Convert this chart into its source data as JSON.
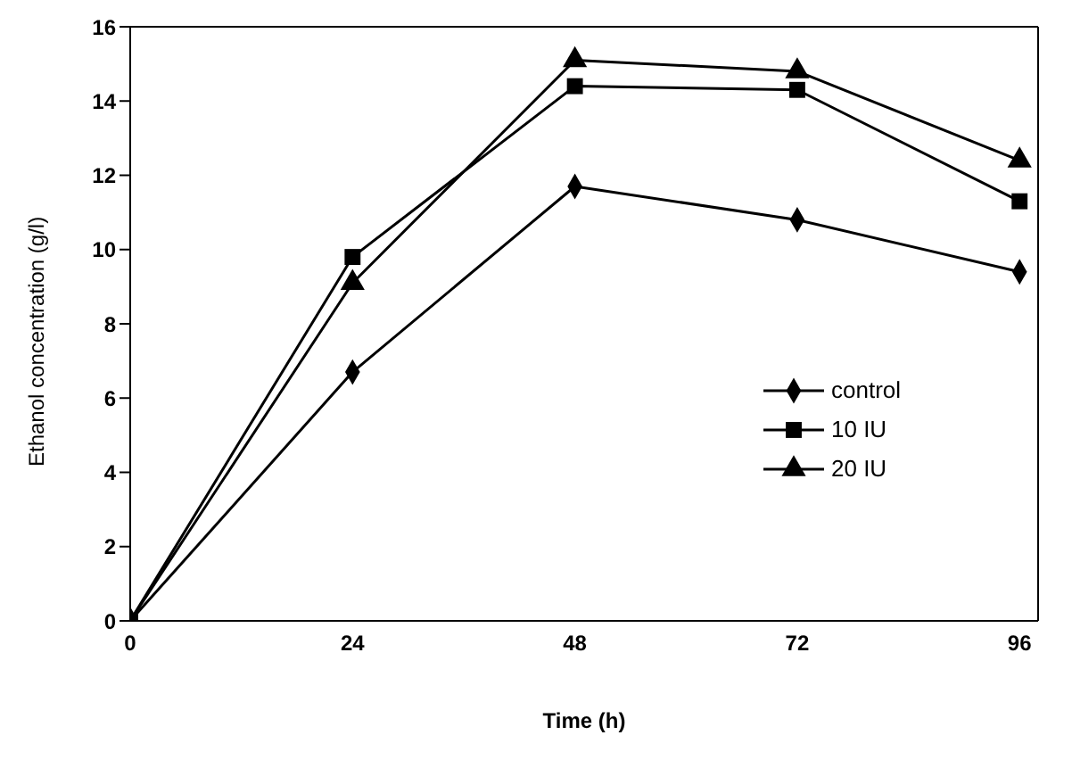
{
  "chart_data": {
    "type": "line",
    "xlabel": "Time (h)",
    "ylabel": "Ethanol concentration (g/l)",
    "x": [
      0,
      24,
      48,
      72,
      96
    ],
    "series": [
      {
        "name": "control",
        "color": "#000000",
        "marker": "diamond",
        "values": [
          0,
          6.7,
          11.7,
          10.8,
          9.4
        ]
      },
      {
        "name": "10 IU",
        "color": "#000000",
        "marker": "square",
        "values": [
          0,
          9.8,
          14.4,
          14.3,
          11.3
        ]
      },
      {
        "name": "20 IU",
        "color": "#000000",
        "marker": "triangle",
        "values": [
          0,
          9.1,
          15.1,
          14.8,
          12.4
        ]
      }
    ],
    "xlim": [
      0,
      98
    ],
    "xticks": [
      0,
      24,
      48,
      72,
      96
    ],
    "ylim": [
      0,
      16
    ],
    "yticks": [
      0,
      2,
      4,
      6,
      8,
      10,
      12,
      14,
      16
    ],
    "grid": false,
    "legend": "right",
    "line_style": "solid"
  }
}
